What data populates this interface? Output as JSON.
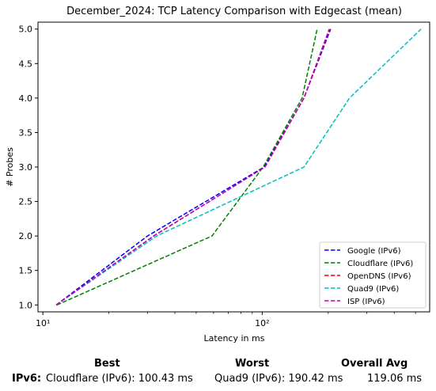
{
  "chart_data": {
    "type": "line",
    "title": "December_2024: TCP Latency Comparison with Edgecast (mean)",
    "xlabel": "Latency in ms",
    "ylabel": "# Probes",
    "xscale": "log",
    "xlim": [
      9.5,
      580
    ],
    "ylim": [
      0.9,
      5.1
    ],
    "yticks": [
      1.0,
      1.5,
      2.0,
      2.5,
      3.0,
      3.5,
      4.0,
      4.5,
      5.0
    ],
    "ytick_labels": [
      "1.0",
      "1.5",
      "2.0",
      "2.5",
      "3.0",
      "3.5",
      "4.0",
      "4.5",
      "5.0"
    ],
    "xticks": [
      10,
      100
    ],
    "xtick_labels": [
      "10¹",
      "10²"
    ],
    "grid": false,
    "legend_position": "lower-right",
    "series": [
      {
        "name": "Google (IPv6)",
        "color": "#0000ff",
        "points": [
          [
            11.5,
            1.0
          ],
          [
            30,
            2.0
          ],
          [
            102,
            3.0
          ],
          [
            155,
            4.0
          ],
          [
            205,
            5.0
          ]
        ]
      },
      {
        "name": "Cloudflare (IPv6)",
        "color": "#008000",
        "points": [
          [
            11.6,
            1.0
          ],
          [
            59,
            2.0
          ],
          [
            101,
            3.0
          ],
          [
            152,
            4.0
          ],
          [
            178,
            5.0
          ]
        ]
      },
      {
        "name": "OpenDNS (IPv6)",
        "color": "#ff0000",
        "points": [
          [
            11.5,
            1.0
          ],
          [
            32,
            2.0
          ],
          [
            103,
            3.0
          ],
          [
            155,
            4.0
          ],
          [
            203,
            5.0
          ]
        ]
      },
      {
        "name": "Quad9 (IPv6)",
        "color": "#00bfbf",
        "points": [
          [
            11.5,
            1.0
          ],
          [
            33,
            2.0
          ],
          [
            155,
            3.0
          ],
          [
            250,
            4.0
          ],
          [
            530,
            5.0
          ]
        ]
      },
      {
        "name": "ISP (IPv6)",
        "color": "#bf00bf",
        "points": [
          [
            11.5,
            1.0
          ],
          [
            32,
            2.0
          ],
          [
            103,
            3.0
          ],
          [
            155,
            4.0
          ],
          [
            202,
            5.0
          ]
        ]
      }
    ]
  },
  "summary": {
    "headers": {
      "best": "Best",
      "worst": "Worst",
      "overall": "Overall Avg"
    },
    "row_label": "IPv6",
    "best": "Cloudflare (IPv6): 100.43 ms",
    "worst": "Quad9 (IPv6): 190.42 ms",
    "overall": "119.06 ms"
  }
}
